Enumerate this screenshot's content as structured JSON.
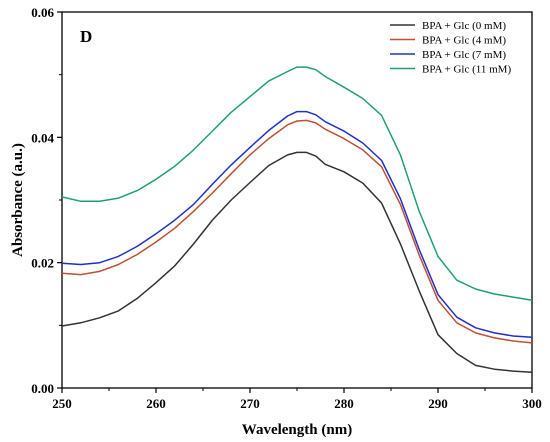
{
  "chart_data": {
    "type": "line",
    "panel_label": "D",
    "xlabel": "Wavelength (nm)",
    "ylabel": "Absorbance (a.u.)",
    "xlim": [
      250,
      300
    ],
    "ylim": [
      0,
      0.06
    ],
    "xticks": [
      250,
      260,
      270,
      280,
      290,
      300
    ],
    "yticks": [
      0.0,
      0.02,
      0.04,
      0.06
    ],
    "ytick_labels": [
      "0.00",
      "0.02",
      "0.04",
      "0.06"
    ],
    "legend_position": "top-right",
    "x": [
      250,
      252,
      254,
      256,
      258,
      260,
      262,
      264,
      266,
      268,
      270,
      272,
      274,
      275,
      276,
      277,
      278,
      280,
      282,
      284,
      286,
      288,
      290,
      292,
      294,
      296,
      298,
      300
    ],
    "series": [
      {
        "name": "BPA + Glc (0 mM)",
        "color": "#333333",
        "values": [
          0.0099,
          0.0104,
          0.0112,
          0.0123,
          0.0143,
          0.0168,
          0.0195,
          0.023,
          0.0268,
          0.03,
          0.0328,
          0.0355,
          0.0372,
          0.0376,
          0.0376,
          0.037,
          0.0357,
          0.0345,
          0.0327,
          0.0295,
          0.023,
          0.0155,
          0.0085,
          0.0055,
          0.0036,
          0.003,
          0.0027,
          0.0025
        ]
      },
      {
        "name": "BPA + Glc (4 mM)",
        "color": "#c05030",
        "values": [
          0.0183,
          0.0181,
          0.0186,
          0.0197,
          0.0213,
          0.0233,
          0.0255,
          0.0282,
          0.0311,
          0.0342,
          0.0372,
          0.0398,
          0.042,
          0.0426,
          0.0427,
          0.0423,
          0.0413,
          0.0398,
          0.038,
          0.0353,
          0.0293,
          0.0212,
          0.014,
          0.0104,
          0.0088,
          0.008,
          0.0075,
          0.0072
        ]
      },
      {
        "name": "BPA + Glc (7 mM)",
        "color": "#2030c8",
        "values": [
          0.0199,
          0.0197,
          0.02,
          0.021,
          0.0226,
          0.0246,
          0.0268,
          0.0293,
          0.0325,
          0.0356,
          0.0384,
          0.0411,
          0.0434,
          0.0441,
          0.0441,
          0.0436,
          0.0425,
          0.041,
          0.0391,
          0.0363,
          0.0302,
          0.0221,
          0.0149,
          0.0113,
          0.0096,
          0.0088,
          0.0083,
          0.0081
        ]
      },
      {
        "name": "BPA + Glc (11 mM)",
        "color": "#20a070",
        "values": [
          0.0305,
          0.0298,
          0.0298,
          0.0303,
          0.0315,
          0.0333,
          0.0354,
          0.038,
          0.041,
          0.044,
          0.0465,
          0.049,
          0.0505,
          0.0512,
          0.0512,
          0.0508,
          0.0497,
          0.048,
          0.0462,
          0.0435,
          0.0372,
          0.0282,
          0.021,
          0.0172,
          0.0158,
          0.015,
          0.0145,
          0.014
        ]
      }
    ]
  }
}
